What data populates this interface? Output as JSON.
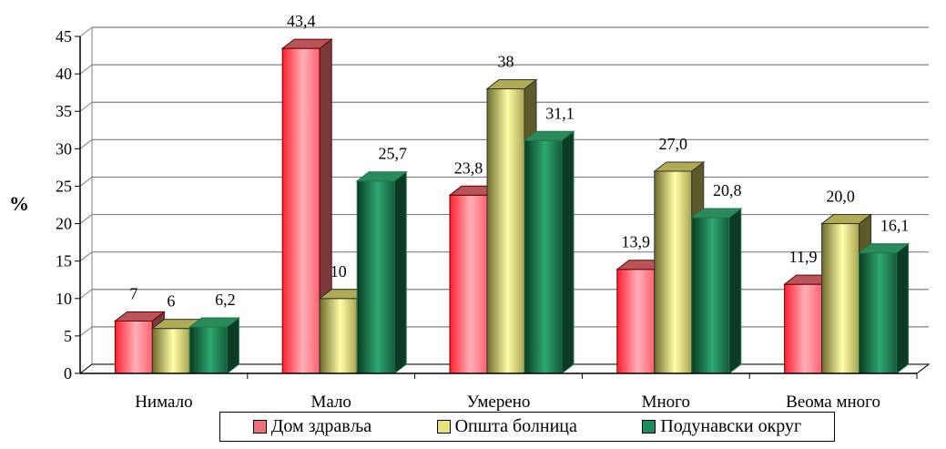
{
  "chart_data": {
    "type": "bar",
    "title": "",
    "xlabel": "",
    "ylabel": "%",
    "ylim": [
      0,
      45
    ],
    "yticks": [
      0,
      5,
      10,
      15,
      20,
      25,
      30,
      35,
      40,
      45
    ],
    "grid": true,
    "legend_position": "bottom",
    "categories": [
      "Нимало",
      "Мало",
      "Умерено",
      "Много",
      "Веома много"
    ],
    "series": [
      {
        "name": "Дом здравља",
        "values": [
          7,
          43.4,
          23.8,
          13.9,
          11.9
        ],
        "labels": [
          "7",
          "43,4",
          "23,8",
          "13,9",
          "11,9"
        ],
        "color": "#f0707a"
      },
      {
        "name": "Општа болница",
        "values": [
          6,
          10,
          38,
          27.0,
          20.0
        ],
        "labels": [
          "6",
          "10",
          "38",
          "27,0",
          "20,0"
        ],
        "color": "#e8e27a"
      },
      {
        "name": "Подунавски округ",
        "values": [
          6.2,
          25.7,
          31.1,
          20.8,
          16.1
        ],
        "labels": [
          "6,2",
          "25,7",
          "31,1",
          "20,8",
          "16,1"
        ],
        "color": "#1f8a5c"
      }
    ]
  }
}
